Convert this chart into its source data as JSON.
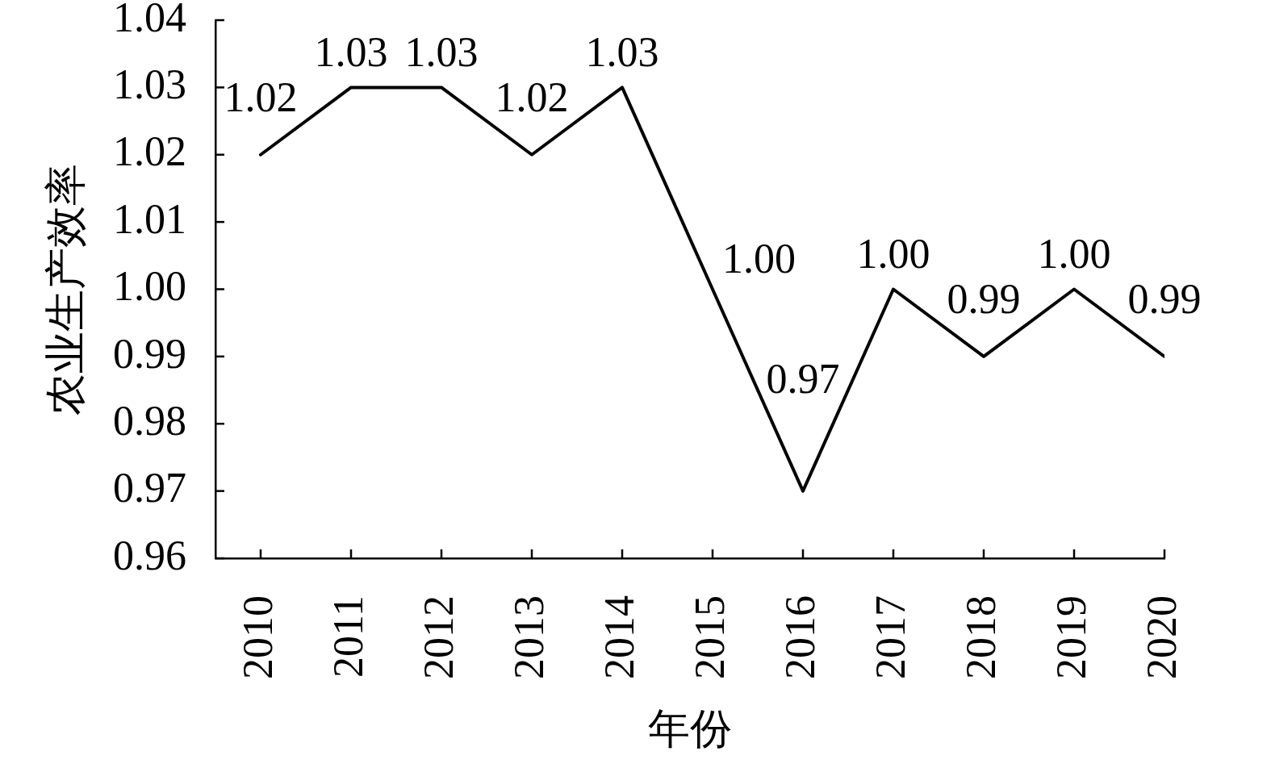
{
  "chart_data": {
    "type": "line",
    "xlabel": "年份",
    "ylabel": "农业生产效率",
    "categories": [
      "2010",
      "2011",
      "2012",
      "2013",
      "2014",
      "2015",
      "2016",
      "2017",
      "2018",
      "2019",
      "2020"
    ],
    "series": [
      {
        "color": "#000000",
        "values": [
          1.02,
          1.03,
          1.03,
          1.02,
          1.03,
          1.0,
          0.97,
          1.0,
          0.99,
          1.0,
          0.99
        ],
        "value_labels": [
          "1.02",
          "1.03",
          "1.03",
          "1.02",
          "1.03",
          "1.00",
          "0.97",
          "1.00",
          "0.99",
          "1.00",
          "0.99"
        ]
      }
    ],
    "ylim": [
      0.96,
      1.04
    ],
    "yticks": [
      0.96,
      0.97,
      0.98,
      0.99,
      {
        "value": 1,
        "label": "1.00"
      },
      1.01,
      1.02,
      1.03,
      1.04
    ],
    "grid": false,
    "legend": false,
    "marker": "none",
    "line_style": "solid"
  }
}
